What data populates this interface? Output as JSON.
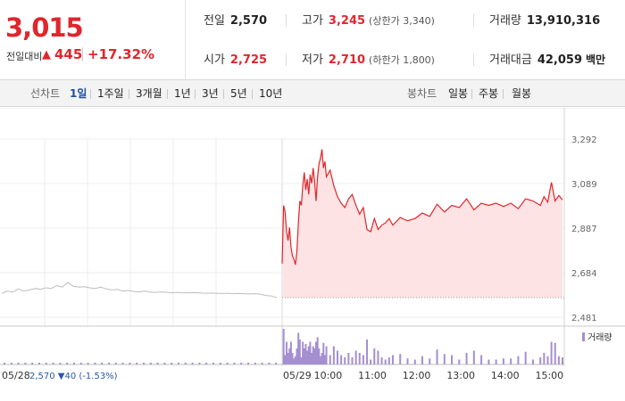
{
  "quote": {
    "current_price": "3,015",
    "change_label": "전일대비",
    "change_arrow": "▲",
    "change_value": "445",
    "change_pct": "+17.32%",
    "prev_close_label": "전일",
    "prev_close": "2,570",
    "high_label": "고가",
    "high": "3,245",
    "upper_limit": "(상한가 3,340)",
    "volume_label": "거래량",
    "volume": "13,910,316",
    "open_label": "시가",
    "open": "2,725",
    "low_label": "저가",
    "low": "2,710",
    "lower_limit": "(하한가 1,800)",
    "value_label": "거래대금",
    "value": "42,059",
    "value_unit": "백만"
  },
  "tabs": {
    "period_title": "선차트",
    "periods": [
      "1일",
      "1주일",
      "3개월",
      "1년",
      "3년",
      "5년",
      "10년"
    ],
    "active_period": "1일",
    "candle_title": "봉차트",
    "candles": [
      "일봉",
      "주봉",
      "월봉"
    ]
  },
  "colors": {
    "up": "#e0262c",
    "down": "#2a57a8",
    "prev_line": "#bdbdbd",
    "area_fill": "#fde3e3",
    "volume": "#a48fd1"
  },
  "chart_data": {
    "type": "line",
    "y_ticks": [
      "3,292",
      "3,089",
      "2,887",
      "2,684",
      "2,481"
    ],
    "ylim": [
      2481,
      3292
    ],
    "x_ticks": [
      "10:00",
      "11:00",
      "12:00",
      "13:00",
      "14:00",
      "15:00"
    ],
    "prev_day_date": "05/28",
    "prev_day_info": "2,570 ▼40 (-1.53%)",
    "current_day_date": "05/29",
    "base_price": 2570,
    "volume_legend": "거래량",
    "series": [
      {
        "x": [
          "0",
          "0.02",
          "0.04",
          "0.06",
          "0.08",
          "0.10",
          "0.12",
          "0.14",
          "0.16",
          "0.18",
          "0.20",
          "0.22",
          "0.24",
          "0.26",
          "0.28",
          "0.30",
          "0.32",
          "0.34",
          "0.36",
          "0.38",
          "0.40",
          "0.42",
          "0.44",
          "0.46",
          "0.48",
          "0.50",
          "0.52",
          "0.54",
          "0.56",
          "0.58",
          "0.60",
          "0.62",
          "0.64",
          "0.66",
          "0.68",
          "0.70",
          "0.72",
          "0.74",
          "0.76",
          "0.78",
          "0.80",
          "0.82",
          "0.84",
          "0.86",
          "0.88",
          "0.90",
          "0.92",
          "0.94",
          "0.96",
          "0.98",
          "1.0"
        ],
        "values": [
          2590,
          2600,
          2595,
          2610,
          2600,
          2605,
          2612,
          2608,
          2615,
          2612,
          2625,
          2618,
          2640,
          2622,
          2618,
          2620,
          2615,
          2612,
          2618,
          2610,
          2605,
          2608,
          2600,
          2603,
          2598,
          2596,
          2600,
          2595,
          2594,
          2596,
          2594,
          2592,
          2594,
          2592,
          2592,
          2593,
          2592,
          2590,
          2591,
          2590,
          2589,
          2590,
          2588,
          2589,
          2588,
          2587,
          2588,
          2586,
          2580,
          2578,
          2570
        ]
      },
      {
        "x": [
          "09:00",
          "09:02",
          "09:04",
          "09:06",
          "09:08",
          "09:10",
          "09:12",
          "09:14",
          "09:16",
          "09:18",
          "09:20",
          "09:22",
          "09:24",
          "09:26",
          "09:28",
          "09:30",
          "09:32",
          "09:34",
          "09:36",
          "09:38",
          "09:40",
          "09:42",
          "09:44",
          "09:46",
          "09:48",
          "09:50",
          "09:52",
          "09:54",
          "09:56",
          "09:58",
          "10:00",
          "10:05",
          "10:10",
          "10:15",
          "10:20",
          "10:25",
          "10:30",
          "10:35",
          "10:40",
          "10:45",
          "10:50",
          "10:55",
          "11:00",
          "11:05",
          "11:10",
          "11:15",
          "11:20",
          "11:25",
          "11:30",
          "11:40",
          "11:50",
          "12:00",
          "12:10",
          "12:20",
          "12:30",
          "12:40",
          "12:50",
          "13:00",
          "13:10",
          "13:20",
          "13:30",
          "13:40",
          "13:50",
          "14:00",
          "14:10",
          "14:20",
          "14:30",
          "14:40",
          "14:50",
          "14:55",
          "15:00",
          "15:05",
          "15:10",
          "15:15",
          "15:20"
        ],
        "values": [
          2725,
          2990,
          2960,
          2870,
          2830,
          2890,
          2800,
          2760,
          2745,
          2720,
          2780,
          2910,
          3010,
          2990,
          3080,
          3140,
          3060,
          3110,
          3040,
          3130,
          3090,
          3160,
          3100,
          3010,
          3120,
          3180,
          3205,
          3245,
          3160,
          3190,
          3120,
          3150,
          3080,
          3030,
          3000,
          2980,
          3020,
          3040,
          2990,
          2950,
          2980,
          2880,
          2870,
          2930,
          2880,
          2900,
          2910,
          2930,
          2900,
          2935,
          2920,
          2930,
          2955,
          2940,
          2995,
          2960,
          2990,
          2980,
          3020,
          2970,
          3000,
          2990,
          3000,
          2985,
          3000,
          2975,
          3020,
          3010,
          2990,
          3030,
          3005,
          3095,
          3010,
          3035,
          3015
        ]
      }
    ]
  }
}
